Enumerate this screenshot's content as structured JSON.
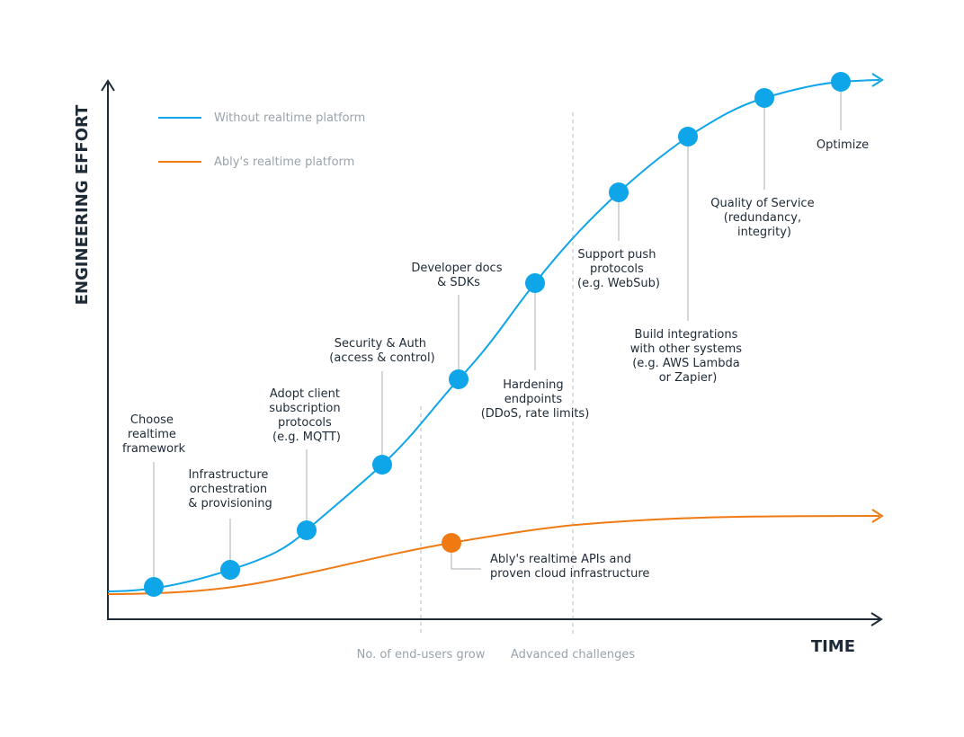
{
  "axes": {
    "y_label": "ENGINEERING EFFORT",
    "x_label": "TIME"
  },
  "legend": [
    {
      "label": "Without realtime platform",
      "color": "#0ea5e9"
    },
    {
      "label": "Ably's realtime platform",
      "color": "#f07a12"
    }
  ],
  "phase_markers": [
    {
      "label": "No. of end-users grow"
    },
    {
      "label": "Advanced challenges"
    }
  ],
  "milestones": [
    {
      "lines": [
        "Choose",
        "realtime",
        "framework"
      ]
    },
    {
      "lines": [
        "Infrastructure",
        "orchestration",
        "& provisioning"
      ]
    },
    {
      "lines": [
        "Adopt client",
        "subscription",
        "protocols",
        "(e.g. MQTT)"
      ]
    },
    {
      "lines": [
        "Security & Auth",
        "(access & control)"
      ]
    },
    {
      "lines": [
        "Developer docs",
        "& SDKs"
      ]
    },
    {
      "lines": [
        "Hardening",
        "endpoints",
        "(DDoS, rate limits)"
      ]
    },
    {
      "lines": [
        "Support push",
        "protocols",
        "(e.g. WebSub)"
      ]
    },
    {
      "lines": [
        "Build integrations",
        "with other systems",
        "(e.g. AWS Lambda",
        "or Zapier)"
      ]
    },
    {
      "lines": [
        "Quality of Service",
        "(redundancy,",
        "integrity)"
      ]
    },
    {
      "lines": [
        "Optimize"
      ]
    }
  ],
  "ably_milestone": {
    "lines": [
      "Ably's realtime APIs and",
      "proven cloud infrastructure"
    ]
  },
  "colors": {
    "blue": "#0ea5e9",
    "orange": "#f07a12",
    "axis": "#1e2a36",
    "connector": "#a8afb6",
    "dashed": "#b6bcc2"
  }
}
